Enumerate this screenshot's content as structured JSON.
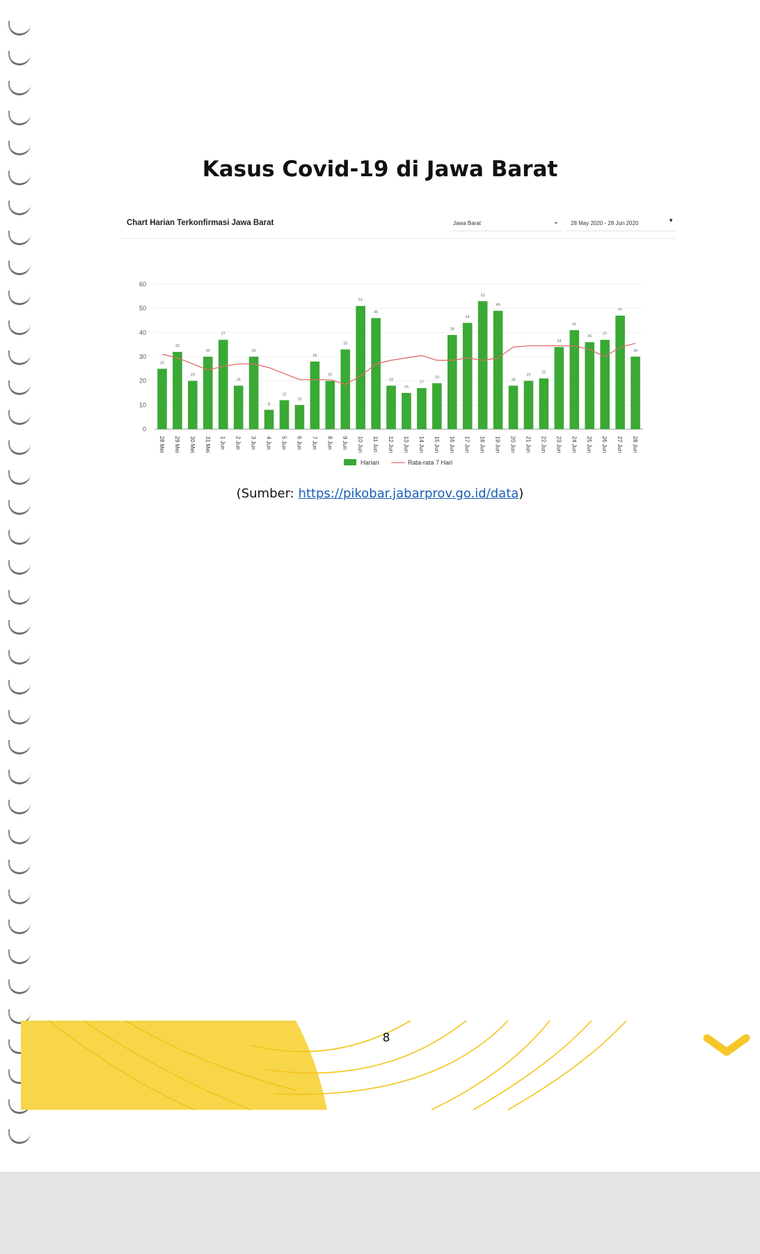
{
  "document": {
    "title": "Kasus Covid-19 di Jawa Barat",
    "source_prefix": "(Sumber: ",
    "source_link": "https://pikobar.jabarprov.go.id/data",
    "source_suffix": ")",
    "page_number": "8"
  },
  "chart_card": {
    "heading": "Chart Harian Terkonfirmasi Jawa Barat",
    "region_select": "Jawa Barat",
    "date_range": "28 May 2020 - 28 Jun 2020"
  },
  "colors": {
    "bar": "#3aa935",
    "average_line": "#e06b6b",
    "footer_accent": "#f7d64a"
  },
  "icons": {
    "region_chevron": "chevron-down-icon",
    "date_caret": "caret-down-icon",
    "corner_mark": "chevron-down-icon"
  },
  "chart_data": {
    "type": "bar",
    "categories": [
      "28 Mei",
      "29 Mei",
      "30 Mei",
      "31 Mei",
      "1 Jun",
      "2 Jun",
      "3 Jun",
      "4 Jun",
      "5 Jun",
      "6 Jun",
      "7 Jun",
      "8 Jun",
      "9 Jun",
      "10 Jun",
      "11 Jun",
      "12 Jun",
      "13 Jun",
      "14 Jun",
      "15 Jun",
      "16 Jun",
      "17 Jun",
      "18 Jun",
      "19 Jun",
      "20 Jun",
      "21 Jun",
      "22 Jun",
      "23 Jun",
      "24 Jun",
      "25 Jun",
      "26 Jun",
      "27 Jun",
      "28 Jun"
    ],
    "series": [
      {
        "name": "Harian",
        "type": "bar",
        "values": [
          25,
          32,
          20,
          30,
          37,
          18,
          30,
          8,
          12,
          10,
          28,
          20,
          33,
          51,
          46,
          18,
          15,
          17,
          19,
          39,
          44,
          53,
          49,
          18,
          20,
          21,
          34,
          41,
          36,
          37,
          47,
          30
        ]
      },
      {
        "name": "Rata-rata 7 Hari",
        "type": "line",
        "values": [
          31,
          29.5,
          27,
          24.5,
          26,
          27,
          27,
          25.5,
          23,
          20.5,
          20.5,
          20.5,
          18.5,
          22,
          27,
          28.5,
          29.5,
          30.5,
          28.5,
          28.5,
          29.5,
          28.5,
          29.5,
          34,
          34.5,
          34.5,
          34.5,
          34.5,
          33,
          30,
          34,
          35.5
        ]
      }
    ],
    "data_labels": [
      "25",
      "32",
      "20",
      "30",
      "37",
      "18",
      "30",
      "8",
      "12",
      "10",
      "28",
      "20",
      "33",
      "51",
      "46",
      "18",
      "15",
      "17",
      "19",
      "39",
      "44",
      "53",
      "49",
      "18",
      "20",
      "21",
      "34",
      "41",
      "36",
      "37",
      "47",
      "30"
    ],
    "ylim": [
      0,
      60
    ],
    "yticks": [
      0,
      10,
      20,
      30,
      40,
      50,
      60
    ],
    "ytick_labels": [
      "0",
      "10",
      "20",
      "30",
      "40",
      "50",
      "60"
    ],
    "grid": true,
    "legend_position": "bottom"
  }
}
